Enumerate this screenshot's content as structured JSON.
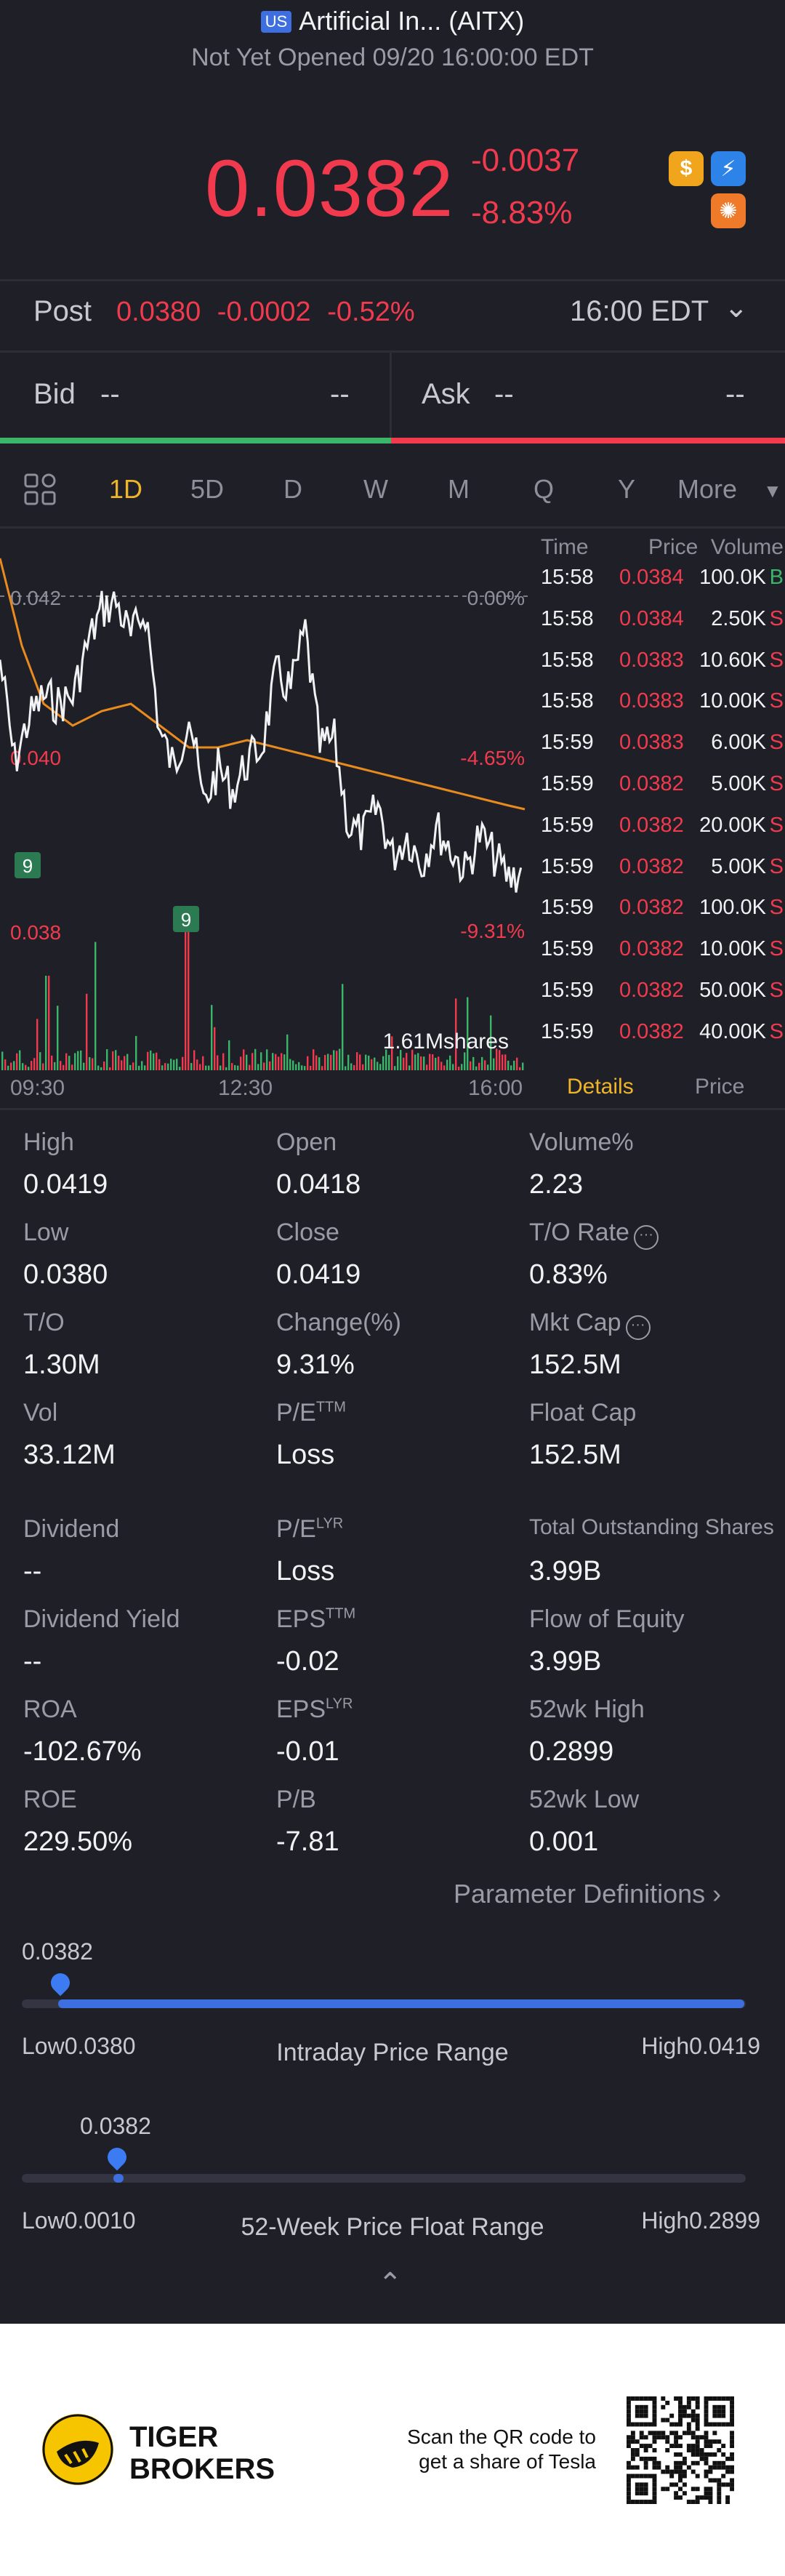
{
  "header": {
    "market_badge": "US",
    "title": "Artificial In... (AITX)",
    "status": "Not Yet Opened 09/20 16:00:00 EDT"
  },
  "quote": {
    "price": "0.0382",
    "change": "-0.0037",
    "change_pct": "-8.83%",
    "icons": [
      "dollar-icon",
      "lightning-icon",
      "gear-badge-icon"
    ]
  },
  "post": {
    "label": "Post",
    "price": "0.0380",
    "change": "-0.0002",
    "change_pct": "-0.52%",
    "time": "16:00 EDT"
  },
  "bidask": {
    "bid_label": "Bid",
    "bid_price": "--",
    "bid_size": "--",
    "ask_label": "Ask",
    "ask_price": "--",
    "ask_size": "--"
  },
  "tabs": [
    "1D",
    "5D",
    "D",
    "W",
    "M",
    "Q",
    "Y",
    "More"
  ],
  "active_tab": "1D",
  "chart": {
    "y_labels": {
      "top": "0.042",
      "mid": "0.040",
      "bottom": "0.038"
    },
    "pct_labels": {
      "top": "0.00%",
      "mid": "-4.65%",
      "bottom": "-9.31%"
    },
    "volume_label": "1.61Mshares",
    "x_labels": [
      "09:30",
      "12:30",
      "16:00"
    ],
    "markers": [
      "9",
      "9"
    ]
  },
  "ticks": {
    "headers": {
      "time": "Time",
      "price": "Price",
      "volume": "Volume"
    },
    "rows": [
      {
        "time": "15:58",
        "price": "0.0384",
        "volume": "100.0K",
        "side": "B"
      },
      {
        "time": "15:58",
        "price": "0.0384",
        "volume": "2.50K",
        "side": "S"
      },
      {
        "time": "15:58",
        "price": "0.0383",
        "volume": "10.60K",
        "side": "S"
      },
      {
        "time": "15:58",
        "price": "0.0383",
        "volume": "10.00K",
        "side": "S"
      },
      {
        "time": "15:59",
        "price": "0.0383",
        "volume": "6.00K",
        "side": "S"
      },
      {
        "time": "15:59",
        "price": "0.0382",
        "volume": "5.00K",
        "side": "S"
      },
      {
        "time": "15:59",
        "price": "0.0382",
        "volume": "20.00K",
        "side": "S"
      },
      {
        "time": "15:59",
        "price": "0.0382",
        "volume": "5.00K",
        "side": "S"
      },
      {
        "time": "15:59",
        "price": "0.0382",
        "volume": "100.0K",
        "side": "S"
      },
      {
        "time": "15:59",
        "price": "0.0382",
        "volume": "10.00K",
        "side": "S"
      },
      {
        "time": "15:59",
        "price": "0.0382",
        "volume": "50.00K",
        "side": "S"
      },
      {
        "time": "15:59",
        "price": "0.0382",
        "volume": "40.00K",
        "side": "S"
      }
    ],
    "tabs": [
      "Details",
      "Price"
    ]
  },
  "stats": {
    "high": {
      "label": "High",
      "value": "0.0419"
    },
    "open": {
      "label": "Open",
      "value": "0.0418"
    },
    "volume_pct": {
      "label": "Volume%",
      "value": "2.23"
    },
    "low": {
      "label": "Low",
      "value": "0.0380"
    },
    "close": {
      "label": "Close",
      "value": "0.0419"
    },
    "to_rate": {
      "label": "T/O Rate",
      "value": "0.83%"
    },
    "to": {
      "label": "T/O",
      "value": "1.30M"
    },
    "change_pct": {
      "label": "Change(%)",
      "value": "9.31%"
    },
    "mkt_cap": {
      "label": "Mkt Cap",
      "value": "152.5M"
    },
    "vol": {
      "label": "Vol",
      "value": "33.12M"
    },
    "pe_ttm": {
      "label": "P/E",
      "sup": "TTM",
      "value": "Loss"
    },
    "float_cap": {
      "label": "Float Cap",
      "value": "152.5M"
    },
    "dividend": {
      "label": "Dividend",
      "value": "--"
    },
    "pe_lyr": {
      "label": "P/E",
      "sup": "LYR",
      "value": "Loss"
    },
    "total_shares": {
      "label": "Total Outstanding Shares",
      "value": "3.99B"
    },
    "dividend_yield": {
      "label": "Dividend Yield",
      "value": "--"
    },
    "eps_ttm": {
      "label": "EPS",
      "sup": "TTM",
      "value": "-0.02"
    },
    "flow_equity": {
      "label": "Flow of Equity",
      "value": "3.99B"
    },
    "roa": {
      "label": "ROA",
      "value": "-102.67%"
    },
    "eps_lyr": {
      "label": "EPS",
      "sup": "LYR",
      "value": "-0.01"
    },
    "wk52_high": {
      "label": "52wk High",
      "value": "0.2899"
    },
    "roe": {
      "label": "ROE",
      "value": "229.50%"
    },
    "pb": {
      "label": "P/B",
      "value": "-7.81"
    },
    "wk52_low": {
      "label": "52wk Low",
      "value": "0.001"
    }
  },
  "param_def": "Parameter Definitions",
  "intraday_range": {
    "current": "0.0382",
    "low_label": "Low",
    "low": "0.0380",
    "high_label": "High",
    "high": "0.0419",
    "title": "Intraday Price Range",
    "level": 0.05
  },
  "week52_range": {
    "current": "0.0382",
    "low_label": "Low",
    "low": "0.0010",
    "high_label": "High",
    "high": "0.2899",
    "title": "52-Week Price Float Range",
    "level": 0.13
  },
  "footer": {
    "brand_line1": "TIGER",
    "brand_line2": "BROKERS",
    "qr_line1": "Scan the QR code to",
    "qr_line2": "get a share of Tesla"
  },
  "colors": {
    "up": "#3bb56a",
    "down": "#f23a4f",
    "accent": "#f0b429",
    "range": "#3d6fe0"
  }
}
